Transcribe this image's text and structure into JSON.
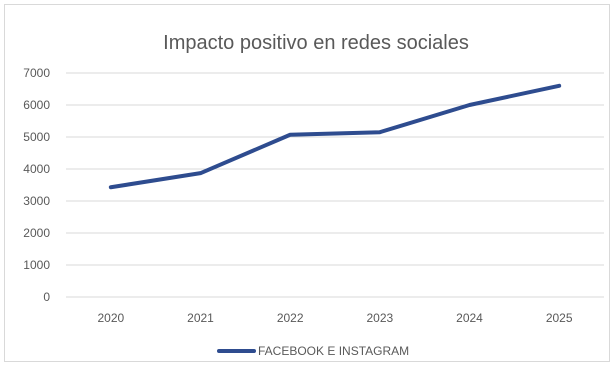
{
  "chart_data": {
    "type": "line",
    "title": "Impacto positivo en redes sociales",
    "xlabel": "",
    "ylabel": "",
    "categories": [
      "2020",
      "2021",
      "2022",
      "2023",
      "2024",
      "2025"
    ],
    "series": [
      {
        "name": "FACEBOOK E INSTAGRAM",
        "values": [
          3430,
          3870,
          5070,
          5150,
          6000,
          6600
        ],
        "color": "#2e4c8f"
      }
    ],
    "ylim": [
      0,
      7000
    ],
    "yticks": [
      0,
      1000,
      2000,
      3000,
      4000,
      5000,
      6000,
      7000
    ],
    "grid": true,
    "legend": "bottom",
    "colors": {
      "gridline": "#d9d9d9",
      "text": "#595959",
      "border": "#d9d9d9"
    }
  }
}
